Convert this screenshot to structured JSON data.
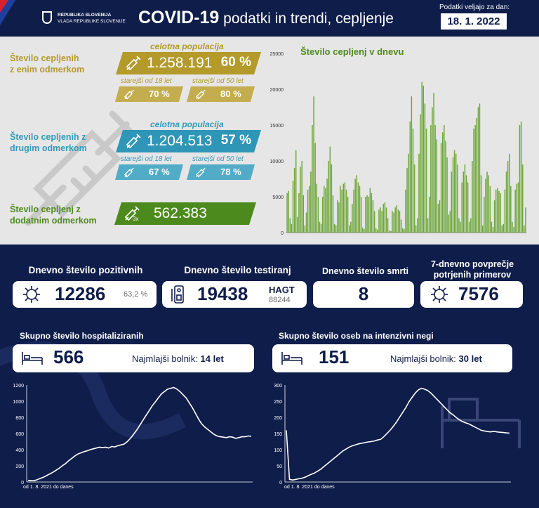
{
  "header": {
    "ministry_line1": "REPUBLIKA SLOVENIJA",
    "ministry_line2": "VLADA REPUBLIKE SLOVENIJE",
    "title_bold": "COVID-19",
    "title_rest": " podatki in trendi, cepljenje",
    "date_label": "Podatki veljajo za dan:",
    "date": "18. 1. 2022"
  },
  "colors": {
    "gold": "#b39a2b",
    "teal": "#3399b8",
    "green": "#4d8a1e",
    "navy": "#0f1d4a",
    "chart_green": "#6ea83a"
  },
  "vacc": {
    "first": {
      "label_line1": "Število cepljenih",
      "label_line2": "z enim odmerkom",
      "pop_label": "celotna populacija",
      "total": "1.258.191",
      "pct": "60 %",
      "sub1_label": "starejši od 18 let",
      "sub1_pct": "70 %",
      "sub2_label": "starejši od 50 let",
      "sub2_pct": "80 %"
    },
    "second": {
      "label_line1": "Število cepljenih z",
      "label_line2": "drugim odmerkom",
      "pop_label": "celotna populacija",
      "total": "1.204.513",
      "pct": "57 %",
      "sub1_label": "starejši od 18 let",
      "sub1_pct": "67 %",
      "sub2_label": "starejši od 50 let",
      "sub2_pct": "78 %"
    },
    "booster": {
      "label_line1": "Število cepljenj z",
      "label_line2": "dodatnim odmerkom",
      "icon_tag": "3x",
      "total": "562.383"
    }
  },
  "stats": {
    "positive": {
      "title": "Dnevno število pozitivnih",
      "value": "12286",
      "pct": "63,2 %"
    },
    "tested": {
      "title": "Dnevno število testiranj",
      "value": "19438",
      "hagt_label": "HAGT",
      "hagt_value": "88244"
    },
    "deaths": {
      "title": "Dnevno število smrti",
      "value": "8"
    },
    "avg": {
      "title_line1": "7-dnevno povprečje",
      "title_line2": "potrjenih primerov",
      "value": "7576"
    }
  },
  "hosp": {
    "title": "Skupno število hospitaliziranih",
    "value": "566",
    "youngest_label": "Najmlajši bolnik: ",
    "youngest_value": "14 let",
    "footer": "od 1. 8. 2021 do danes"
  },
  "icu": {
    "title": "Skupno število oseb na intenzivni negi",
    "value": "151",
    "youngest_label": "Najmlajši bolnik: ",
    "youngest_value": "30 let",
    "footer": "od 1. 8. 2021 do danes"
  },
  "chart_data": [
    {
      "type": "bar",
      "title": "Število cepljenj v dnevu",
      "ylim": [
        0,
        25000
      ],
      "yticks": [
        0,
        5000,
        10000,
        15000,
        20000,
        25000
      ],
      "ytick_labels": [
        "0",
        "5000",
        "10000",
        "15000",
        "20000",
        "25000"
      ],
      "grid": false,
      "values": [
        5500,
        5800,
        2000,
        1200,
        7200,
        9000,
        11500,
        2200,
        5500,
        9200,
        10000,
        5200,
        1000,
        2800,
        6000,
        6500,
        8500,
        15000,
        19000,
        12500,
        6800,
        5000,
        1500,
        1200,
        5000,
        6500,
        6200,
        7500,
        10000,
        12000,
        9500,
        5200,
        1200,
        1000,
        4500,
        4200,
        6500,
        6000,
        6800,
        7000,
        6000,
        5000,
        1000,
        1500,
        4000,
        6000,
        7500,
        8000,
        7000,
        6500,
        5000,
        700,
        500,
        5000,
        5200,
        5000,
        6200,
        5500,
        4500,
        3000,
        600,
        400,
        3200,
        3500,
        3000,
        4000,
        4200,
        3500,
        2000,
        300,
        200,
        3000,
        2800,
        3500,
        3800,
        3200,
        3000,
        1800,
        600,
        500,
        6000,
        9000,
        11000,
        15500,
        19000,
        14500,
        9500,
        1000,
        2000,
        11000,
        16500,
        21000,
        20500,
        18000,
        14500,
        2000,
        5000,
        15000,
        17500,
        19500,
        15000,
        13000,
        4000,
        4500,
        12500,
        14000,
        15000,
        12800,
        10500,
        2500,
        3000,
        8500,
        10500,
        11500,
        11000,
        9500,
        2000,
        1500,
        7000,
        8500,
        9500,
        8000,
        7000,
        1500,
        2000,
        10000,
        14500,
        15000,
        16000,
        17500,
        18000,
        8000,
        1000,
        5000,
        7500,
        8500,
        8000,
        6500,
        1500,
        800,
        4500,
        6000,
        6200,
        5800,
        5500,
        1000,
        1200,
        6000,
        8500,
        10000,
        11000,
        6500,
        1500,
        800,
        6000,
        6800,
        7000,
        15000,
        15500,
        9500,
        1000,
        3500
      ]
    },
    {
      "type": "line",
      "title": "Skupno število hospitaliziranih",
      "xlabel": "od 1. 8. 2021 do danes",
      "ylim": [
        0,
        1200
      ],
      "yticks": [
        0,
        200,
        400,
        600,
        800,
        1000,
        1200
      ],
      "ytick_labels": [
        "0",
        "200",
        "400",
        "600",
        "800",
        "1000",
        "1200"
      ],
      "values": [
        20,
        18,
        17,
        30,
        45,
        60,
        80,
        100,
        120,
        145,
        170,
        200,
        225,
        260,
        290,
        320,
        345,
        360,
        375,
        385,
        400,
        410,
        420,
        430,
        425,
        430,
        420,
        440,
        435,
        450,
        460,
        470,
        500,
        540,
        590,
        640,
        700,
        760,
        820,
        880,
        940,
        990,
        1040,
        1090,
        1120,
        1150,
        1160,
        1170,
        1150,
        1120,
        1080,
        1040,
        980,
        920,
        850,
        780,
        720,
        680,
        650,
        620,
        590,
        570,
        560,
        555,
        550,
        560,
        555,
        540,
        550,
        560,
        560,
        570,
        566
      ]
    },
    {
      "type": "line",
      "title": "Skupno število oseb na intenzivni negi",
      "xlabel": "od 1. 8. 2021 do danes",
      "ylim": [
        0,
        300
      ],
      "yticks": [
        0,
        50,
        100,
        150,
        200,
        250,
        300
      ],
      "ytick_labels": [
        "0",
        "50",
        "100",
        "150",
        "200",
        "250",
        "300"
      ],
      "values": [
        160,
        8,
        6,
        8,
        10,
        12,
        15,
        20,
        24,
        28,
        34,
        40,
        48,
        56,
        64,
        72,
        80,
        88,
        96,
        102,
        108,
        112,
        115,
        118,
        120,
        122,
        124,
        125,
        127,
        130,
        132,
        140,
        150,
        160,
        172,
        185,
        200,
        215,
        230,
        248,
        262,
        275,
        285,
        290,
        287,
        283,
        275,
        265,
        255,
        245,
        235,
        225,
        215,
        208,
        200,
        193,
        187,
        183,
        180,
        175,
        170,
        165,
        160,
        158,
        156,
        155,
        157,
        155,
        154,
        153,
        152,
        151
      ]
    }
  ]
}
